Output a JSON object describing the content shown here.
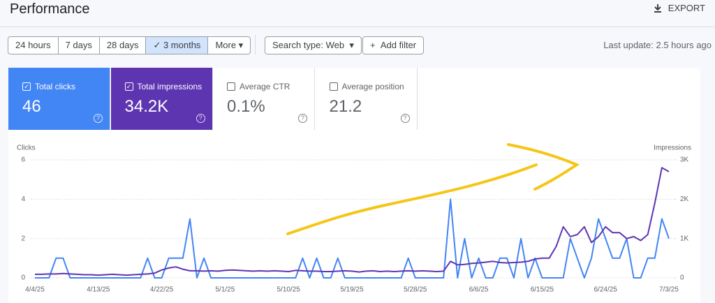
{
  "header": {
    "title": "Performance",
    "export": "EXPORT"
  },
  "filters": {
    "ranges": [
      "24 hours",
      "7 days",
      "28 days",
      "3 months",
      "More"
    ],
    "selected_range": 3,
    "search_type": "Search type: Web",
    "add_filter": "Add filter",
    "last_update": "Last update: 2.5 hours ago"
  },
  "metrics": [
    {
      "label": "Total clicks",
      "value": "46",
      "selected": true,
      "color": "#4285f4"
    },
    {
      "label": "Total impressions",
      "value": "34.2K",
      "selected": true,
      "color": "#5e35b1"
    },
    {
      "label": "Average CTR",
      "value": "0.1%",
      "selected": false,
      "color": "#ffffff"
    },
    {
      "label": "Average position",
      "value": "21.2",
      "selected": false,
      "color": "#ffffff"
    }
  ],
  "chart_data": {
    "type": "line",
    "categories": [
      "4/4/25",
      null,
      null,
      null,
      null,
      null,
      null,
      null,
      null,
      "4/13/25",
      null,
      null,
      null,
      null,
      null,
      null,
      null,
      null,
      "4/22/25",
      null,
      null,
      null,
      null,
      null,
      null,
      null,
      null,
      "5/1/25",
      null,
      null,
      null,
      null,
      null,
      null,
      null,
      null,
      "5/10/25",
      null,
      null,
      null,
      null,
      null,
      null,
      null,
      null,
      "5/19/25",
      null,
      null,
      null,
      null,
      null,
      null,
      null,
      null,
      "5/28/25",
      null,
      null,
      null,
      null,
      null,
      null,
      null,
      null,
      "6/6/25",
      null,
      null,
      null,
      null,
      null,
      null,
      null,
      null,
      "6/15/25",
      null,
      null,
      null,
      null,
      null,
      null,
      null,
      null,
      "6/24/25",
      null,
      null,
      null,
      null,
      null,
      null,
      null,
      null,
      "7/3/25"
    ],
    "series": [
      {
        "name": "Clicks",
        "color": "#4285f4",
        "values": [
          0,
          0,
          0,
          1,
          1,
          0,
          0,
          0,
          0,
          0,
          0,
          0,
          0,
          0,
          0,
          0,
          1,
          0,
          0,
          1,
          1,
          1,
          3,
          0,
          1,
          0,
          0,
          0,
          0,
          0,
          0,
          0,
          0,
          0,
          0,
          0,
          0,
          0,
          1,
          0,
          1,
          0,
          0,
          1,
          0,
          0,
          0,
          0,
          0,
          0,
          0,
          0,
          0,
          1,
          0,
          0,
          0,
          0,
          0,
          4,
          0,
          2,
          0,
          1,
          0,
          0,
          1,
          1,
          0,
          2,
          0,
          1,
          0,
          0,
          0,
          0,
          2,
          1,
          0,
          1,
          3,
          2,
          1,
          1,
          2,
          0,
          0,
          1,
          1,
          3,
          2
        ]
      },
      {
        "name": "Impressions",
        "color": "#5e35b1",
        "axis": "y2",
        "values": [
          90,
          90,
          100,
          100,
          110,
          100,
          90,
          80,
          80,
          70,
          80,
          90,
          80,
          70,
          80,
          90,
          100,
          120,
          200,
          250,
          280,
          220,
          180,
          180,
          170,
          180,
          170,
          190,
          200,
          190,
          180,
          170,
          180,
          170,
          180,
          170,
          160,
          190,
          180,
          170,
          170,
          160,
          160,
          170,
          180,
          170,
          150,
          170,
          180,
          160,
          170,
          160,
          170,
          180,
          170,
          180,
          170,
          160,
          170,
          420,
          330,
          340,
          370,
          380,
          400,
          420,
          390,
          380,
          390,
          400,
          420,
          480,
          500,
          500,
          800,
          1300,
          1050,
          1100,
          1300,
          900,
          1050,
          1300,
          1150,
          1150,
          1000,
          1050,
          950,
          1100,
          1900,
          2800,
          2700
        ]
      }
    ],
    "ylim": [
      0,
      6
    ],
    "yticks": [
      0,
      2,
      4,
      6
    ],
    "y2lim": [
      0,
      3000
    ],
    "y2ticks": [
      0,
      {
        "value": 1000,
        "label": "1K"
      },
      {
        "value": 2000,
        "label": "2K"
      },
      {
        "value": 3000,
        "label": "3K"
      }
    ],
    "grid": true
  }
}
